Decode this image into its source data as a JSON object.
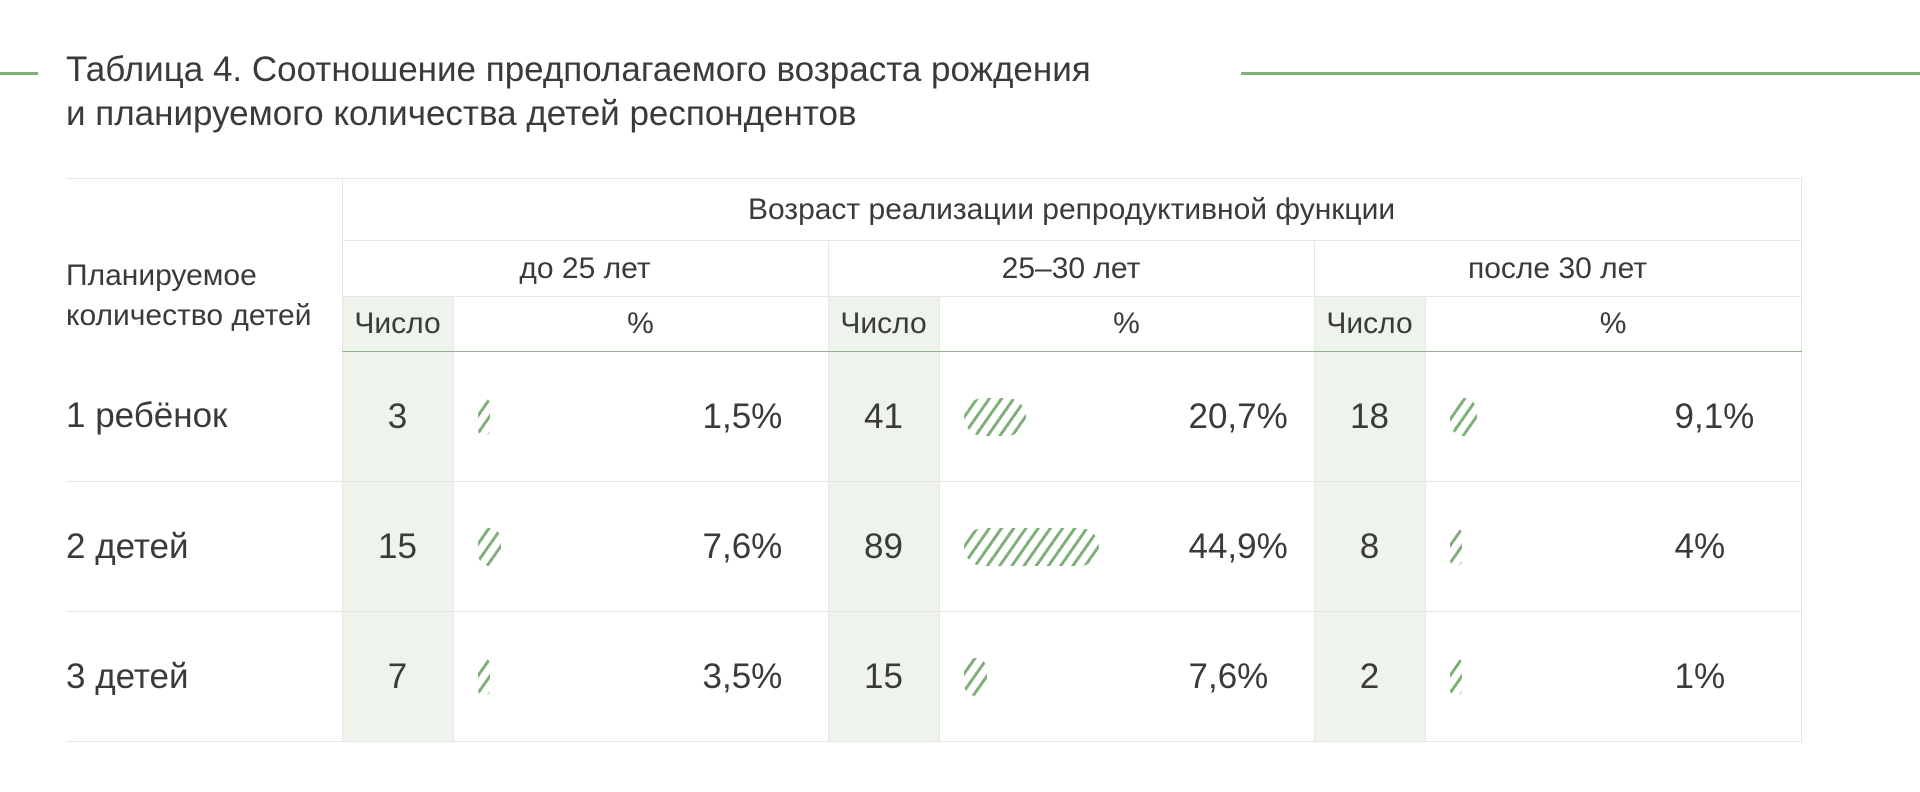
{
  "title": {
    "line1": "Таблица 4. Соотношение предполагаемого возраста рождения",
    "line2": "и планируемого количества детей респондентов"
  },
  "table": {
    "row_header": "Планируемое количество детей",
    "group_header": "Возраст реализации репродуктивной функции",
    "age_groups": [
      "до 25 лет",
      "25–30 лет",
      "после 30 лет"
    ],
    "count_label": "Число",
    "percent_label": "%",
    "rows": [
      {
        "label": "1 ребёнок",
        "cells": [
          {
            "count": "3",
            "percent": "1,5%",
            "value": 1.5
          },
          {
            "count": "41",
            "percent": "20,7%",
            "value": 20.7
          },
          {
            "count": "18",
            "percent": "9,1%",
            "value": 9.1
          }
        ]
      },
      {
        "label": "2 детей",
        "cells": [
          {
            "count": "15",
            "percent": "7,6%",
            "value": 7.6
          },
          {
            "count": "89",
            "percent": "44,9%",
            "value": 44.9
          },
          {
            "count": "8",
            "percent": "4%",
            "value": 4
          }
        ]
      },
      {
        "label": "3 детей",
        "cells": [
          {
            "count": "7",
            "percent": "3,5%",
            "value": 3.5
          },
          {
            "count": "15",
            "percent": "7,6%",
            "value": 7.6
          },
          {
            "count": "2",
            "percent": "1%",
            "value": 1
          }
        ]
      }
    ]
  },
  "colors": {
    "accent": "#7fb07a",
    "count_bg": "#eef4ec",
    "text": "#3a3a3a",
    "grid": "#e6e6e6"
  }
}
